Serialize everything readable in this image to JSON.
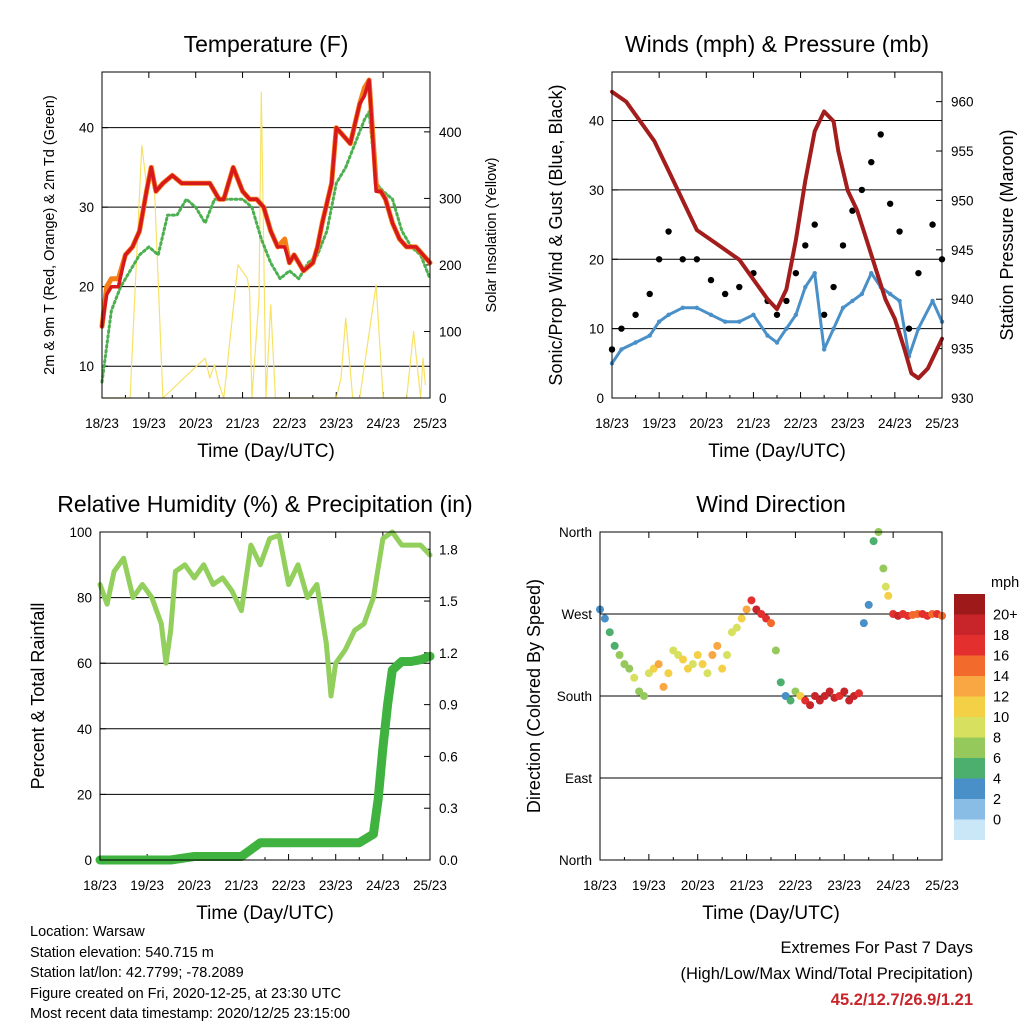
{
  "chart_data": [
    {
      "type": "line",
      "title": "Temperature (F)",
      "xlabel": "Time (Day/UTC)",
      "ylabel": "2m & 9m T (Red, Orange) & 2m Td (Green)",
      "ylabel_right": "Solar Insolation (Yellow)",
      "xticks": [
        "18/23",
        "19/23",
        "20/23",
        "21/23",
        "22/23",
        "23/23",
        "24/23",
        "25/23"
      ],
      "xlim": [
        0,
        7
      ],
      "ylim": [
        6,
        47
      ],
      "yticks": [
        10,
        20,
        30,
        40
      ],
      "ylim_right": [
        0,
        490
      ],
      "yticks_right": [
        0,
        100,
        200,
        300,
        400
      ],
      "series": [
        {
          "name": "2m T",
          "color": "#d7191c",
          "x": [
            0,
            0.1,
            0.2,
            0.35,
            0.5,
            0.65,
            0.8,
            0.95,
            1.05,
            1.15,
            1.3,
            1.5,
            1.7,
            1.9,
            2.1,
            2.3,
            2.5,
            2.6,
            2.8,
            3.0,
            3.15,
            3.3,
            3.45,
            3.6,
            3.75,
            3.9,
            4.0,
            4.1,
            4.3,
            4.5,
            4.6,
            4.7,
            4.9,
            5.0,
            5.15,
            5.3,
            5.5,
            5.6,
            5.7,
            5.85,
            5.9,
            5.95,
            6.05,
            6.2,
            6.35,
            6.5,
            6.7,
            6.85,
            7.0
          ],
          "y": [
            15,
            19,
            20,
            20,
            24,
            25,
            27,
            32,
            35,
            32,
            33,
            34,
            33,
            33,
            33,
            33,
            31,
            31,
            35,
            32,
            31,
            31,
            30,
            27,
            25,
            25,
            23,
            24,
            22,
            23,
            25,
            28,
            33,
            40,
            39,
            38,
            43,
            44,
            46,
            32,
            32,
            32,
            31,
            28,
            26,
            25,
            25,
            24,
            23
          ]
        },
        {
          "name": "9m T",
          "color": "#f57f17",
          "x": [
            0,
            0.1,
            0.2,
            0.35,
            0.5,
            0.65,
            0.8,
            0.95,
            1.05,
            1.15,
            1.3,
            1.5,
            1.7,
            1.9,
            2.1,
            2.3,
            2.5,
            2.6,
            2.8,
            3.0,
            3.15,
            3.3,
            3.45,
            3.6,
            3.75,
            3.9,
            4.0,
            4.1,
            4.3,
            4.5,
            4.6,
            4.7,
            4.9,
            5.0,
            5.15,
            5.3,
            5.5,
            5.6,
            5.7,
            5.85,
            5.9,
            5.95,
            6.05,
            6.2,
            6.35,
            6.5,
            6.7,
            6.85,
            7.0
          ],
          "y": [
            15,
            20,
            21,
            21,
            24,
            25,
            27,
            32,
            35,
            32,
            33,
            34,
            33,
            33,
            33,
            33,
            31,
            31,
            35,
            32,
            31,
            31,
            30,
            27,
            25,
            26,
            23,
            24,
            22,
            23,
            25,
            28,
            33,
            40,
            39,
            38,
            43,
            45,
            46,
            33,
            32,
            32,
            31,
            28,
            26,
            25,
            25,
            24,
            23
          ]
        },
        {
          "name": "2m Td",
          "color": "#4caf50",
          "x": [
            0,
            0.2,
            0.4,
            0.6,
            0.8,
            1.0,
            1.2,
            1.4,
            1.6,
            1.8,
            2.0,
            2.2,
            2.4,
            2.6,
            2.8,
            3.0,
            3.2,
            3.4,
            3.6,
            3.8,
            4.0,
            4.2,
            4.4,
            4.6,
            4.8,
            5.0,
            5.2,
            5.4,
            5.6,
            5.7,
            5.85,
            6.0,
            6.2,
            6.4,
            6.6,
            6.8,
            7.0
          ],
          "y": [
            8,
            17,
            20,
            22,
            24,
            25,
            24,
            29,
            29,
            31,
            30,
            28,
            31,
            31,
            31,
            31,
            30,
            26,
            23,
            21,
            22,
            21,
            23,
            24,
            27,
            33,
            35,
            38,
            41,
            42,
            33,
            32,
            31,
            27,
            25,
            24,
            21
          ]
        },
        {
          "name": "Solar Insolation",
          "color": "#f7e266",
          "axis": "right",
          "x": [
            0,
            0.6,
            0.85,
            0.95,
            1.1,
            1.3,
            2.2,
            2.3,
            2.4,
            2.5,
            2.6,
            2.9,
            3.1,
            3.15,
            3.2,
            3.35,
            3.4,
            3.5,
            3.6,
            3.7,
            4.6,
            5.0,
            5.1,
            5.2,
            5.35,
            5.5,
            5.85,
            6.0,
            6.1,
            6.3,
            6.5,
            6.65,
            6.8,
            6.85,
            6.9
          ],
          "y": [
            0,
            0,
            380,
            320,
            350,
            0,
            60,
            30,
            50,
            20,
            0,
            200,
            180,
            160,
            0,
            150,
            460,
            0,
            140,
            0,
            0,
            0,
            30,
            120,
            0,
            0,
            170,
            0,
            0,
            0,
            0,
            100,
            0,
            60,
            20
          ]
        }
      ]
    },
    {
      "type": "scatter",
      "title": "Winds (mph) & Pressure (mb)",
      "xlabel": "Time (Day/UTC)",
      "ylabel": "Sonic/Prop Wind & Gust (Blue, Black)",
      "ylabel_right": "Station Pressure (Maroon)",
      "xticks": [
        "18/23",
        "19/23",
        "20/23",
        "21/23",
        "22/23",
        "23/23",
        "24/23",
        "25/23"
      ],
      "xlim": [
        0,
        7
      ],
      "ylim": [
        0,
        47
      ],
      "yticks": [
        0,
        10,
        20,
        30,
        40
      ],
      "ylim_right": [
        930,
        963
      ],
      "yticks_right": [
        930,
        935,
        940,
        945,
        950,
        955,
        960
      ],
      "series": [
        {
          "name": "Sonic/Prop Wind",
          "color": "#4a90c8",
          "x": [
            0,
            0.2,
            0.5,
            0.8,
            1.0,
            1.2,
            1.5,
            1.8,
            2.1,
            2.4,
            2.7,
            3.0,
            3.3,
            3.5,
            3.7,
            3.9,
            4.1,
            4.3,
            4.5,
            4.7,
            4.9,
            5.1,
            5.3,
            5.5,
            5.7,
            5.9,
            6.1,
            6.3,
            6.5,
            6.8,
            7.0
          ],
          "y": [
            5,
            7,
            8,
            9,
            11,
            12,
            13,
            13,
            12,
            11,
            11,
            12,
            9,
            8,
            10,
            12,
            16,
            18,
            7,
            10,
            13,
            14,
            15,
            18,
            16,
            15,
            14,
            6,
            10,
            14,
            11
          ]
        },
        {
          "name": "Gust",
          "color": "#000000",
          "x": [
            0,
            0.2,
            0.5,
            0.8,
            1.0,
            1.2,
            1.5,
            1.8,
            2.1,
            2.4,
            2.7,
            3.0,
            3.3,
            3.5,
            3.7,
            3.9,
            4.1,
            4.3,
            4.5,
            4.7,
            4.9,
            5.1,
            5.3,
            5.5,
            5.7,
            5.9,
            6.1,
            6.3,
            6.5,
            6.8,
            7.0
          ],
          "y": [
            7,
            10,
            12,
            15,
            20,
            24,
            20,
            20,
            17,
            15,
            16,
            18,
            14,
            12,
            14,
            18,
            22,
            25,
            12,
            16,
            22,
            27,
            30,
            34,
            38,
            28,
            24,
            10,
            18,
            25,
            20
          ]
        },
        {
          "name": "Station Pressure",
          "color": "#a31d1d",
          "axis": "right",
          "x": [
            0,
            0.3,
            0.6,
            0.9,
            1.2,
            1.5,
            1.8,
            2.1,
            2.4,
            2.7,
            3.0,
            3.3,
            3.5,
            3.7,
            3.9,
            4.1,
            4.3,
            4.5,
            4.7,
            4.8,
            5.0,
            5.2,
            5.4,
            5.6,
            5.8,
            6.0,
            6.2,
            6.35,
            6.5,
            6.7,
            6.9,
            7.0
          ],
          "y": [
            961,
            960,
            958,
            956,
            953,
            950,
            947,
            946,
            945,
            944,
            942,
            940,
            939,
            941,
            946,
            952,
            957,
            959,
            958,
            955,
            951,
            949,
            946,
            943,
            940,
            938,
            935,
            932.5,
            932,
            933,
            935,
            936
          ]
        }
      ]
    },
    {
      "type": "line",
      "title": "Relative Humidity (%) & Precipitation (in)",
      "xlabel": "Time (Day/UTC)",
      "ylabel": "Percent & Total Rainfall",
      "xticks": [
        "18/23",
        "19/23",
        "20/23",
        "21/23",
        "22/23",
        "23/23",
        "24/23",
        "25/23"
      ],
      "xlim": [
        0,
        7
      ],
      "ylim": [
        0,
        100
      ],
      "yticks": [
        0,
        20,
        40,
        60,
        80,
        100
      ],
      "ylim_right": [
        0,
        1.9
      ],
      "yticks_right": [
        "0.0",
        "0.3",
        "0.6",
        "0.9",
        "1.2",
        "1.5",
        "1.8"
      ],
      "series": [
        {
          "name": "Relative Humidity",
          "color": "#92cf5c",
          "x": [
            0,
            0.15,
            0.3,
            0.5,
            0.7,
            0.9,
            1.1,
            1.3,
            1.4,
            1.5,
            1.6,
            1.8,
            2.0,
            2.2,
            2.4,
            2.6,
            2.8,
            3.0,
            3.2,
            3.4,
            3.6,
            3.8,
            4.0,
            4.2,
            4.4,
            4.6,
            4.8,
            4.9,
            5.0,
            5.2,
            5.4,
            5.6,
            5.8,
            6.0,
            6.2,
            6.4,
            6.6,
            6.8,
            7.0
          ],
          "y": [
            84,
            78,
            88,
            92,
            80,
            84,
            80,
            72,
            60,
            70,
            88,
            90,
            86,
            90,
            84,
            86,
            82,
            76,
            96,
            90,
            98,
            99,
            84,
            90,
            80,
            84,
            66,
            50,
            60,
            64,
            70,
            72,
            80,
            98,
            100,
            96,
            96,
            96,
            93
          ]
        },
        {
          "name": "Total Rainfall",
          "color": "#3fb23f",
          "axis": "right",
          "x": [
            0,
            0.5,
            1.0,
            1.5,
            2.0,
            2.5,
            3.0,
            3.2,
            3.4,
            3.6,
            3.8,
            4.0,
            4.5,
            5.0,
            5.5,
            5.8,
            5.9,
            6.0,
            6.1,
            6.2,
            6.4,
            6.6,
            6.8,
            7.0
          ],
          "y": [
            0.0,
            0.0,
            0.0,
            0.0,
            0.02,
            0.02,
            0.02,
            0.06,
            0.1,
            0.1,
            0.1,
            0.1,
            0.1,
            0.1,
            0.1,
            0.15,
            0.35,
            0.65,
            0.9,
            1.1,
            1.15,
            1.15,
            1.16,
            1.18
          ]
        }
      ]
    },
    {
      "type": "scatter",
      "title": "Wind Direction",
      "xlabel": "Time (Day/UTC)",
      "ylabel": "Direction (Colored By Speed)",
      "xticks": [
        "18/23",
        "19/23",
        "20/23",
        "21/23",
        "22/23",
        "23/23",
        "24/23",
        "25/23"
      ],
      "xlim": [
        0,
        7
      ],
      "ylim": [
        0,
        360
      ],
      "yticks": [
        "North",
        "East",
        "South",
        "West",
        "North"
      ],
      "legend_title": "mph",
      "legend_labels": [
        "20+",
        "18",
        "16",
        "14",
        "12",
        "10",
        "8",
        "6",
        "4",
        "2",
        "0"
      ],
      "legend_colors": [
        "#9e1a1a",
        "#c8252b",
        "#e3302e",
        "#f26b2c",
        "#f9a742",
        "#f3d046",
        "#d8e060",
        "#96c95c",
        "#4caf6e",
        "#4a90c8",
        "#89bde6",
        "#c9e7f7"
      ],
      "series": [
        {
          "name": "Direction",
          "x": [
            0,
            0.1,
            0.2,
            0.3,
            0.4,
            0.5,
            0.6,
            0.7,
            0.8,
            0.9,
            1.0,
            1.1,
            1.2,
            1.3,
            1.4,
            1.5,
            1.6,
            1.7,
            1.8,
            1.9,
            2.0,
            2.1,
            2.2,
            2.3,
            2.4,
            2.5,
            2.6,
            2.7,
            2.8,
            2.9,
            3.0,
            3.1,
            3.2,
            3.3,
            3.4,
            3.5,
            3.6,
            3.7,
            3.8,
            3.9,
            4.0,
            4.1,
            4.2,
            4.3,
            4.4,
            4.5,
            4.6,
            4.7,
            4.8,
            4.9,
            5.0,
            5.1,
            5.2,
            5.3,
            5.4,
            5.5,
            5.6,
            5.7,
            5.8,
            5.85,
            5.9,
            6.0,
            6.1,
            6.2,
            6.3,
            6.4,
            6.5,
            6.6,
            6.7,
            6.8,
            6.9,
            7.0
          ],
          "y": [
            275,
            265,
            250,
            235,
            225,
            215,
            210,
            200,
            185,
            180,
            205,
            210,
            215,
            190,
            205,
            230,
            225,
            220,
            210,
            215,
            225,
            215,
            205,
            225,
            235,
            210,
            225,
            250,
            255,
            265,
            275,
            285,
            275,
            270,
            265,
            260,
            230,
            195,
            180,
            175,
            185,
            180,
            175,
            170,
            180,
            175,
            180,
            185,
            178,
            180,
            185,
            175,
            180,
            183,
            260,
            280,
            350,
            360,
            320,
            300,
            290,
            270,
            268,
            270,
            268,
            269,
            270,
            270,
            268,
            270,
            270,
            268
          ],
          "speed": [
            3,
            4,
            5,
            6,
            7,
            7,
            8,
            9,
            7,
            8,
            10,
            12,
            14,
            13,
            11,
            10,
            9,
            11,
            12,
            10,
            12,
            11,
            10,
            13,
            14,
            12,
            10,
            10,
            9,
            11,
            14,
            18,
            19,
            18,
            17,
            16,
            8,
            6,
            4,
            5,
            8,
            12,
            18,
            19,
            20,
            20,
            19,
            20,
            20,
            18,
            19,
            20,
            19,
            18,
            3,
            4,
            6,
            8,
            7,
            10,
            12,
            18,
            19,
            18,
            17,
            16,
            16,
            17,
            18,
            16,
            17,
            16
          ]
        }
      ]
    }
  ],
  "info": {
    "location": "Location: Warsaw",
    "elevation": "Station elevation: 540.715 m",
    "latlon": "Station lat/lon: 42.7799; -78.2089",
    "created": "Figure created on Fri, 2020-12-25, at 23:30 UTC",
    "timestamp": "Most recent data timestamp: 2020/12/25 23:15:00"
  },
  "extremes": {
    "title": "Extremes For Past 7 Days",
    "subtitle": "(High/Low/Max Wind/Total Precipitation)",
    "values": "45.2/12.7/26.9/1.21"
  }
}
